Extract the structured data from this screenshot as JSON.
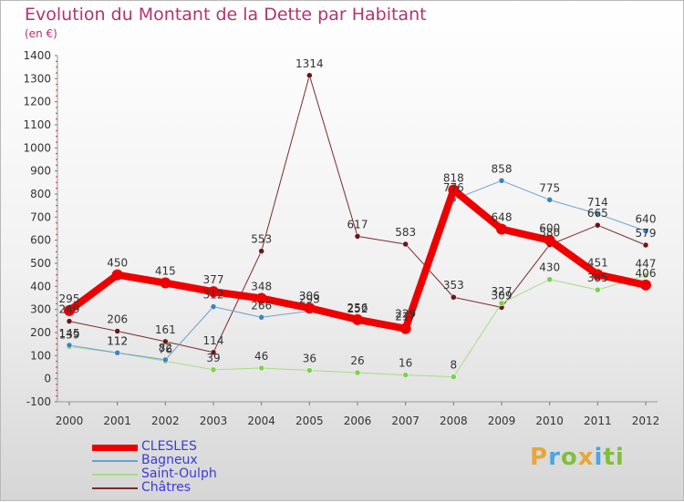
{
  "title": "Evolution du Montant de la Dette par Habitant",
  "subtitle": "(en €)",
  "logo": "Proxiti",
  "colors": {
    "title": "#b3336f",
    "legend_text": "#3b3bd6",
    "axis_text": "#333333"
  },
  "chart_data": {
    "type": "line",
    "x": [
      "2000",
      "2001",
      "2002",
      "2003",
      "2004",
      "2005",
      "2006",
      "2007",
      "2008",
      "2009",
      "2010",
      "2011",
      "2012"
    ],
    "ylim": [
      -100,
      1400
    ],
    "yticks": [
      -100,
      0,
      100,
      200,
      300,
      400,
      500,
      600,
      700,
      800,
      900,
      1000,
      1100,
      1200,
      1300,
      1400
    ],
    "grid": false,
    "legend_position": "bottom-left",
    "series": [
      {
        "name": "CLESLES",
        "color": "#ee0000",
        "marker": "#ee0000",
        "width": 8,
        "values": [
          295,
          450,
          415,
          377,
          348,
          306,
          256,
          217,
          818,
          648,
          600,
          451,
          406
        ],
        "labels": [
          "295",
          "450",
          "415",
          "377",
          "348",
          "306",
          "256",
          "217",
          "818",
          "648",
          "600",
          "451",
          "406"
        ]
      },
      {
        "name": "Bagneux",
        "color": "#6aa0d2",
        "marker": "#3b82c4",
        "width": 1,
        "values": [
          145,
          112,
          82,
          312,
          266,
          293,
          252,
          229,
          776,
          858,
          775,
          714,
          640
        ],
        "labels": [
          "145",
          "112",
          "82",
          "312",
          "266",
          "293",
          "252",
          "229",
          "776",
          "858",
          "775",
          "714",
          "640"
        ]
      },
      {
        "name": "Saint-Oulph",
        "color": "#a6dd84",
        "marker": "#7cd14a",
        "width": 1,
        "values": [
          139,
          112,
          76,
          39,
          46,
          36,
          26,
          16,
          8,
          327,
          430,
          385,
          447
        ],
        "labels": [
          "139",
          "112",
          "76",
          "39",
          "46",
          "36",
          "26",
          "16",
          "8",
          "327",
          "430",
          "385",
          "447"
        ]
      },
      {
        "name": "Châtres",
        "color": "#7a2b2b",
        "marker": "#6b1616",
        "width": 1,
        "values": [
          249,
          206,
          161,
          114,
          553,
          1314,
          617,
          583,
          353,
          309,
          580,
          665,
          579
        ],
        "labels": [
          "249",
          "206",
          "161",
          "114",
          "553",
          "1314",
          "617",
          "583",
          "353",
          "309",
          "580",
          "665",
          "579"
        ]
      }
    ]
  }
}
